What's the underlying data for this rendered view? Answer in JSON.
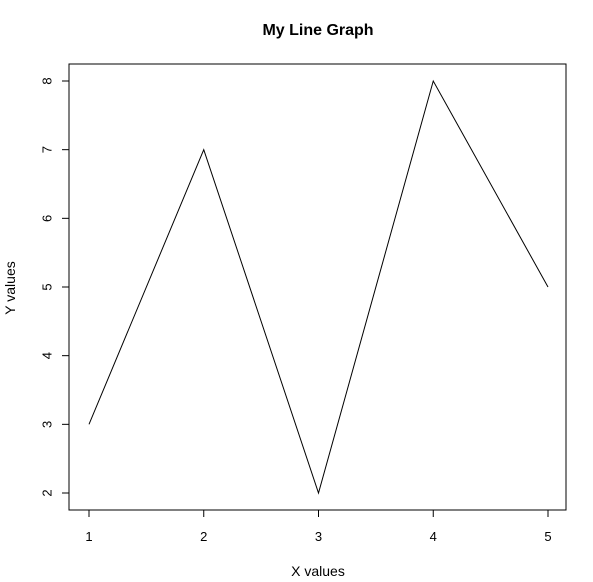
{
  "chart_data": {
    "type": "line",
    "title": "My Line Graph",
    "xlabel": "X values",
    "ylabel": "Y values",
    "x": [
      1,
      2,
      3,
      4,
      5
    ],
    "series": [
      {
        "values": [
          3,
          7,
          2,
          8,
          5
        ],
        "color": "#000000"
      }
    ],
    "xlim": [
      1,
      5
    ],
    "ylim": [
      2,
      8
    ],
    "xticks": [
      1,
      2,
      3,
      4,
      5
    ],
    "yticks": [
      2,
      3,
      4,
      5,
      6,
      7,
      8
    ],
    "grid": false,
    "legend": "none"
  }
}
